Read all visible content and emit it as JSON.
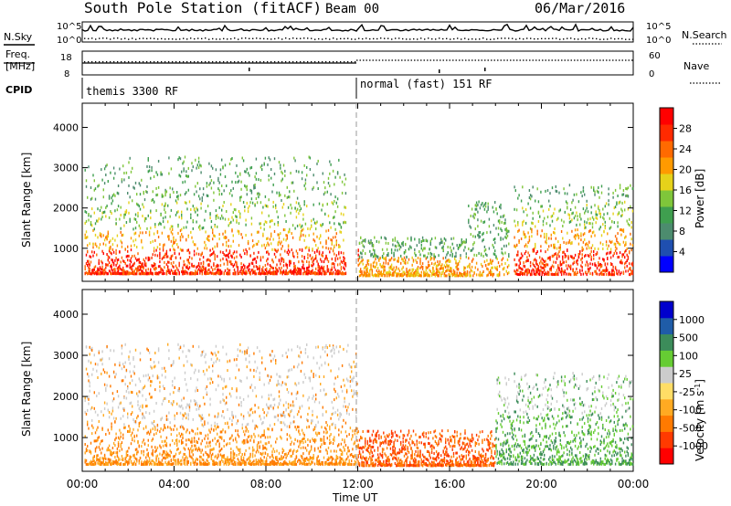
{
  "header": {
    "station": "South Pole Station (fitACF)",
    "beam": "Beam 00",
    "date": "06/Mar/2016"
  },
  "side_labels": {
    "nsky": "N.Sky",
    "freq_line1": "Freq.",
    "freq_line2": "[MHz]",
    "cpid": "CPID",
    "nsearch": "N.Search",
    "nave": "Nave"
  },
  "noise_panel": {
    "left_top": "10^5",
    "left_bottom": "10^0",
    "right_top": "10^5",
    "right_bottom": "10^0"
  },
  "freq_panel": {
    "left_top": "18",
    "left_bottom": "8",
    "right_top": "60",
    "right_bottom": "0"
  },
  "cpid_panel": {
    "mode1": "themis 3300 RF",
    "mode2": "normal (fast) 151 RF"
  },
  "xaxis": {
    "title": "Time UT",
    "ticks": [
      "00:00",
      "04:00",
      "08:00",
      "12:00",
      "16:00",
      "20:00",
      "00:00"
    ]
  },
  "chart_data": [
    {
      "type": "heatmap",
      "title": "",
      "xlabel": "Time UT",
      "ylabel": "Slant Range [km]",
      "yticks": [
        1000,
        2000,
        3000,
        4000
      ],
      "ylim": [
        180,
        4600
      ],
      "xlim_hours": [
        0,
        24
      ],
      "colorbar": {
        "label": "Power [dB]",
        "ticks": [
          "28",
          "24",
          "20",
          "16",
          "12",
          "8",
          "4"
        ],
        "colors": [
          "#0000ff",
          "#1f4fb0",
          "#4c8c6e",
          "#3f9f4f",
          "#7fc63a",
          "#e6d21a",
          "#ff9a00",
          "#ff6a00",
          "#ff2a00",
          "#ff0000"
        ]
      },
      "echo_summary": [
        {
          "x0": 0.0,
          "x1": 11.5,
          "core_range": [
            450,
            1100
          ],
          "level": "28+"
        },
        {
          "x0": 12.0,
          "x1": 16.5,
          "core_range": [
            400,
            700
          ],
          "level": "16-24"
        },
        {
          "x0": 19.0,
          "x1": 24.0,
          "core_range": [
            400,
            1300
          ],
          "level": "24-28"
        }
      ]
    },
    {
      "type": "heatmap",
      "title": "",
      "xlabel": "Time UT",
      "ylabel": "Slant Range [km]",
      "yticks": [
        1000,
        2000,
        3000,
        4000
      ],
      "ylim": [
        180,
        4600
      ],
      "xlim_hours": [
        0,
        24
      ],
      "colorbar": {
        "label": "Velocity [m s^-1]",
        "ticks": [
          "1000",
          "500",
          "100",
          "25",
          "-25",
          "-100",
          "-500",
          "-1000"
        ],
        "colors": [
          "#ff0000",
          "#ff3a00",
          "#ff7a00",
          "#ffaa22",
          "#ffdd66",
          "#cccccc",
          "#66cc33",
          "#3c8c5a",
          "#1f5ca8",
          "#0000cc"
        ]
      },
      "echo_summary": [
        {
          "x0": 0.0,
          "x1": 12.0,
          "core_range": [
            400,
            1000
          ],
          "level": "-100 to -500"
        },
        {
          "x0": 12.0,
          "x1": 18.0,
          "core_range": [
            400,
            800
          ],
          "level": "-100 to -500"
        },
        {
          "x0": 18.0,
          "x1": 24.0,
          "core_range": [
            400,
            1300
          ],
          "level": "+100 to +500"
        }
      ]
    }
  ]
}
